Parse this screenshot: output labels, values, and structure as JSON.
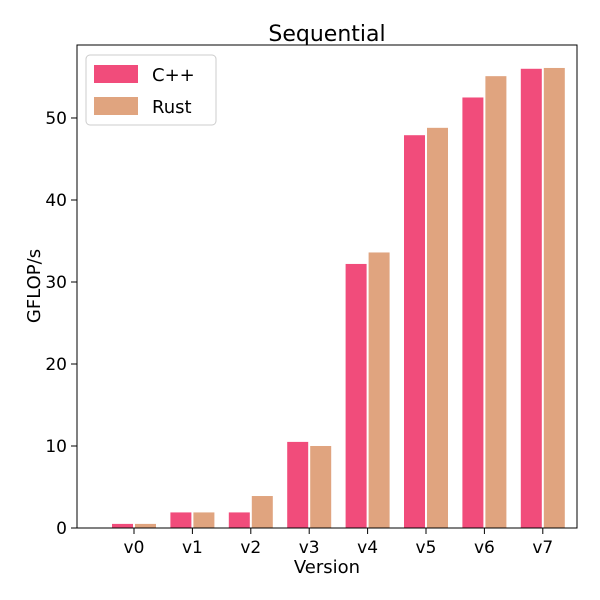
{
  "chart_data": {
    "type": "bar",
    "title": "Sequential",
    "xlabel": "Version",
    "ylabel": "GFLOP/s",
    "categories": [
      "v0",
      "v1",
      "v2",
      "v3",
      "v4",
      "v5",
      "v6",
      "v7"
    ],
    "series": [
      {
        "name": "C++",
        "color": "#f14c7b",
        "values": [
          0.5,
          1.9,
          1.9,
          10.5,
          32.2,
          47.9,
          52.5,
          56.0
        ]
      },
      {
        "name": "Rust",
        "color": "#e0a47f",
        "values": [
          0.5,
          1.9,
          3.9,
          10.0,
          33.6,
          48.8,
          55.1,
          56.1
        ]
      }
    ],
    "ylim": [
      0,
      58.9
    ],
    "yticks": [
      0,
      10,
      20,
      30,
      40,
      50
    ],
    "grid": false,
    "legend_position": "top-left"
  }
}
